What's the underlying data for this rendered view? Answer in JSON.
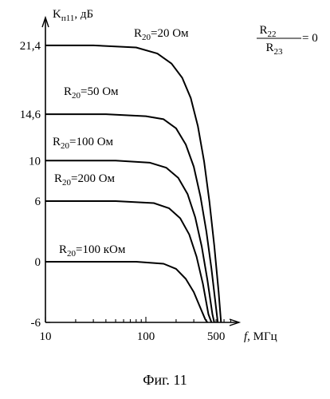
{
  "chart_data": {
    "type": "line",
    "title": "",
    "caption": "Фиг. 11",
    "xlabel": {
      "main": "f",
      "unit": ", МГц"
    },
    "ylabel": {
      "main": "K",
      "sub": "п11",
      "unit": ", дБ"
    },
    "x_scale": "log",
    "xlim": [
      10,
      700
    ],
    "ylim": [
      -6,
      24
    ],
    "x_ticks": [
      {
        "value": 10,
        "label": "10"
      },
      {
        "value": 100,
        "label": "100"
      },
      {
        "value": 500,
        "label": "500"
      }
    ],
    "y_ticks": [
      {
        "value": 21.4,
        "label": "21,4"
      },
      {
        "value": 14.6,
        "label": "14,6"
      },
      {
        "value": 10,
        "label": "10"
      },
      {
        "value": 6,
        "label": "6"
      },
      {
        "value": 0,
        "label": "0"
      },
      {
        "value": -6,
        "label": "-6"
      }
    ],
    "grid": false,
    "ratio_annotation": {
      "numerator": "R",
      "numerator_sub": "22",
      "denominator": "R",
      "denominator_sub": "23",
      "equals": "= 0"
    },
    "series": [
      {
        "label_main": "R",
        "label_sub": "20",
        "label_value": "=20 Ом",
        "x": [
          10,
          30,
          80,
          130,
          180,
          230,
          280,
          330,
          380,
          430,
          480,
          530,
          560
        ],
        "y": [
          21.4,
          21.4,
          21.2,
          20.6,
          19.6,
          18.2,
          16.2,
          13.4,
          9.9,
          5.9,
          1.6,
          -3.0,
          -6
        ]
      },
      {
        "label_main": "R",
        "label_sub": "20",
        "label_value": "=50 Ом",
        "x": [
          10,
          40,
          100,
          150,
          200,
          250,
          300,
          350,
          400,
          450,
          500,
          520
        ],
        "y": [
          14.6,
          14.6,
          14.4,
          14.1,
          13.2,
          11.6,
          9.4,
          6.4,
          3.0,
          -0.7,
          -4.6,
          -6
        ]
      },
      {
        "label_main": "R",
        "label_sub": "20",
        "label_value": "=100 Ом",
        "x": [
          10,
          50,
          110,
          160,
          210,
          260,
          310,
          360,
          410,
          460,
          480
        ],
        "y": [
          10,
          10,
          9.8,
          9.3,
          8.3,
          6.7,
          4.4,
          1.5,
          -1.8,
          -5.2,
          -6
        ]
      },
      {
        "label_main": "R",
        "label_sub": "20",
        "label_value": "=200 Ом",
        "x": [
          10,
          50,
          120,
          170,
          220,
          270,
          320,
          370,
          420,
          450
        ],
        "y": [
          6,
          6,
          5.8,
          5.3,
          4.3,
          2.7,
          0.5,
          -2.2,
          -5.2,
          -6
        ]
      },
      {
        "label_main": "R",
        "label_sub": "20",
        "label_value": "=100 кОм",
        "x": [
          10,
          80,
          150,
          200,
          250,
          300,
          350,
          390,
          410
        ],
        "y": [
          0,
          0,
          -0.2,
          -0.7,
          -1.7,
          -3.0,
          -4.6,
          -5.7,
          -6
        ]
      }
    ]
  }
}
